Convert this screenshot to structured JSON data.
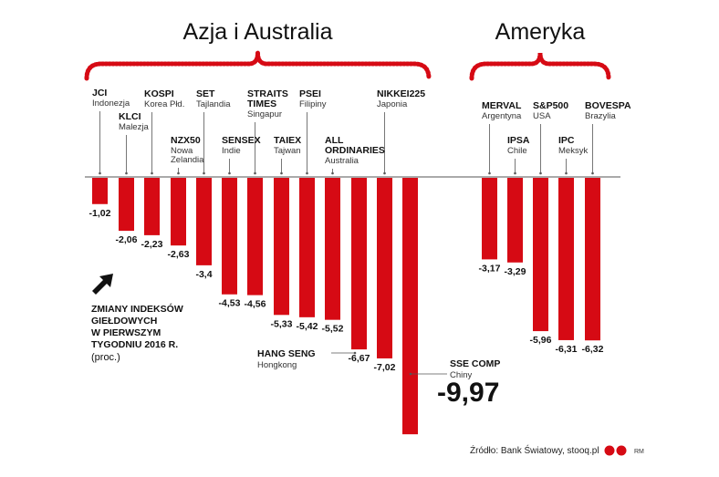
{
  "chart_data": {
    "type": "bar",
    "title": "",
    "ylim": [
      -10.5,
      0
    ],
    "regions": [
      {
        "name": "Azja i Australia",
        "first": 0,
        "last": 12
      },
      {
        "name": "Ameryka",
        "first": 13,
        "last": 17
      }
    ],
    "bars": [
      {
        "code": "JCI",
        "country": "Indonezja",
        "value": -1.02,
        "label": "-1,02"
      },
      {
        "code": "KLCI",
        "country": "Malezja",
        "value": -2.06,
        "label": "-2,06"
      },
      {
        "code": "KOSPI",
        "country": "Korea Płd.",
        "value": -2.23,
        "label": "-2,23"
      },
      {
        "code": "NZX50",
        "country": "Nowa Zelandia",
        "value": -2.63,
        "label": "-2,63"
      },
      {
        "code": "SET",
        "country": "Tajlandia",
        "value": -3.4,
        "label": "-3,4"
      },
      {
        "code": "SENSEX",
        "country": "Indie",
        "value": -4.53,
        "label": "-4,53"
      },
      {
        "code": "STRAITS TIMES",
        "country": "Singapur",
        "value": -4.56,
        "label": "-4,56"
      },
      {
        "code": "TAIEX",
        "country": "Tajwan",
        "value": -5.33,
        "label": "-5,33"
      },
      {
        "code": "PSEI",
        "country": "Filipiny",
        "value": -5.42,
        "label": "-5,42"
      },
      {
        "code": "ALL ORDINARIES",
        "country": "Australia",
        "value": -5.52,
        "label": "-5,52"
      },
      {
        "code": "HANG SENG",
        "country": "Hongkong",
        "value": -6.67,
        "label": "-6,67"
      },
      {
        "code": "NIKKEI225",
        "country": "Japonia",
        "value": -7.02,
        "label": "-7,02"
      },
      {
        "code": "SSE COMP",
        "country": "Chiny",
        "value": -9.97,
        "label": "-9,97"
      },
      {
        "code": "MERVAL",
        "country": "Argentyna",
        "value": -3.17,
        "label": "-3,17"
      },
      {
        "code": "IPSA",
        "country": "Chile",
        "value": -3.29,
        "label": "-3,29"
      },
      {
        "code": "S&P500",
        "country": "USA",
        "value": -5.96,
        "label": "-5,96"
      },
      {
        "code": "IPC",
        "country": "Meksyk",
        "value": -6.31,
        "label": "-6,31"
      },
      {
        "code": "BOVESPA",
        "country": "Brazylia",
        "value": -6.32,
        "label": "-6,32"
      }
    ],
    "note_lines": [
      "ZMIANY INDEKSÓW",
      "GIEŁDOWYCH",
      "W PIERWSZYM",
      "TYGODNIU 2016 R."
    ],
    "unit": "(proc.)",
    "source": "Źródło: Bank Światowy, stooq.pl",
    "logo_text": "RM"
  },
  "colors": {
    "bar": "#d60a14",
    "axis": "#555555",
    "brace": "#d60a14"
  }
}
